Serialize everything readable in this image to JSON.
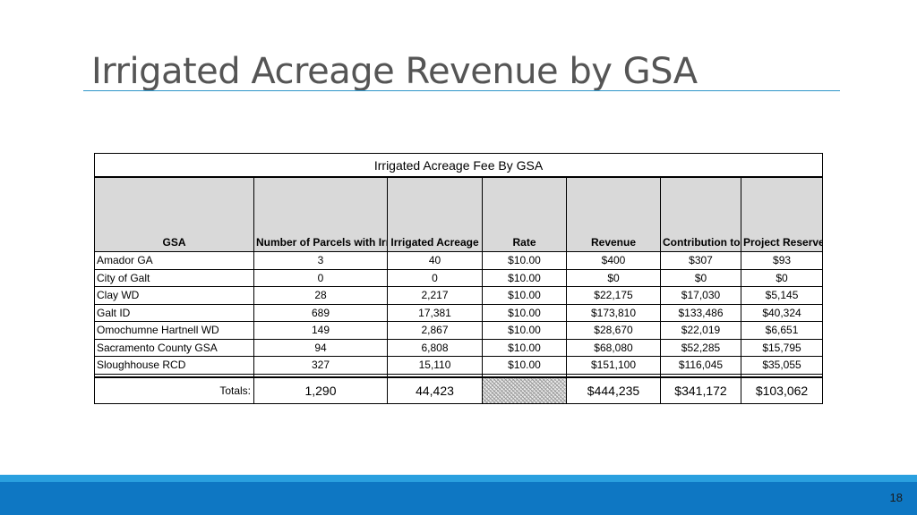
{
  "slide": {
    "title": "Irrigated Acreage Revenue by GSA",
    "page_number": "18",
    "accent_color": "#0e77c3"
  },
  "table": {
    "caption": "Irrigated Acreage Fee By GSA",
    "headers": {
      "gsa": "GSA",
      "parcels": "Number of Parcels with Irrigated Acreage",
      "acreage": "Irrigated Acreage",
      "rate": "Rate",
      "revenue": "Revenue",
      "contribution": "Contribution to CGA",
      "reserve": "Project Reserve Funds Held"
    },
    "rows": [
      {
        "gsa": "Amador GA",
        "parcels": "3",
        "acreage": "40",
        "rate": "$10.00",
        "revenue": "$400",
        "contribution": "$307",
        "reserve": "$93"
      },
      {
        "gsa": "City of Galt",
        "parcels": "0",
        "acreage": "0",
        "rate": "$10.00",
        "revenue": "$0",
        "contribution": "$0",
        "reserve": "$0"
      },
      {
        "gsa": "Clay WD",
        "parcels": "28",
        "acreage": "2,217",
        "rate": "$10.00",
        "revenue": "$22,175",
        "contribution": "$17,030",
        "reserve": "$5,145"
      },
      {
        "gsa": "Galt ID",
        "parcels": "689",
        "acreage": "17,381",
        "rate": "$10.00",
        "revenue": "$173,810",
        "contribution": "$133,486",
        "reserve": "$40,324"
      },
      {
        "gsa": "Omochumne Hartnell WD",
        "parcels": "149",
        "acreage": "2,867",
        "rate": "$10.00",
        "revenue": "$28,670",
        "contribution": "$22,019",
        "reserve": "$6,651"
      },
      {
        "gsa": "Sacramento County GSA",
        "parcels": "94",
        "acreage": "6,808",
        "rate": "$10.00",
        "revenue": "$68,080",
        "contribution": "$52,285",
        "reserve": "$15,795"
      },
      {
        "gsa": "Sloughhouse RCD",
        "parcels": "327",
        "acreage": "15,110",
        "rate": "$10.00",
        "revenue": "$151,100",
        "contribution": "$116,045",
        "reserve": "$35,055"
      }
    ],
    "totals": {
      "label": "Totals:",
      "parcels": "1,290",
      "acreage": "44,423",
      "revenue": "$444,235",
      "contribution": "$341,172",
      "reserve": "$103,062"
    }
  }
}
